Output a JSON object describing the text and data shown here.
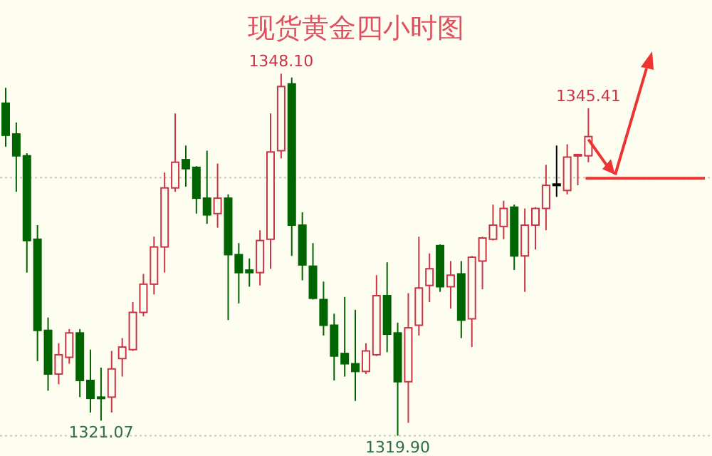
{
  "chart_data": {
    "type": "candlestick",
    "title": "现货黄金四小时图",
    "categories": [
      null,
      null,
      null,
      null,
      null,
      null,
      null,
      null,
      null,
      null,
      null,
      null,
      null,
      null,
      null,
      null,
      null,
      null,
      null,
      null,
      null,
      null,
      null,
      null,
      null,
      null,
      null,
      null,
      null,
      null,
      null,
      null,
      null,
      null,
      null,
      null,
      null,
      null,
      null,
      null,
      null,
      null,
      null,
      null,
      null,
      null,
      null,
      null,
      null,
      null,
      null,
      null,
      null,
      null,
      null,
      null
    ],
    "ohlc": [
      [
        1345.8,
        1347.0,
        1342.4,
        1343.3
      ],
      [
        1343.4,
        1344.3,
        1338.9,
        1341.7
      ],
      [
        1341.7,
        1341.9,
        1332.6,
        1335.1
      ],
      [
        1335.2,
        1336.3,
        1325.7,
        1328.1
      ],
      [
        1328.1,
        1329.1,
        1323.4,
        1324.7
      ],
      [
        1324.7,
        1327.1,
        1323.9,
        1326.2
      ],
      [
        1326.0,
        1328.2,
        1325.5,
        1327.9
      ],
      [
        1327.9,
        1328.2,
        1322.9,
        1324.2
      ],
      [
        1324.2,
        1326.6,
        1321.7,
        1322.8
      ],
      [
        1322.9,
        1325.2,
        1321.07,
        1322.8
      ],
      [
        1322.9,
        1326.5,
        1321.7,
        1325.1
      ],
      [
        1325.9,
        1327.5,
        1324.5,
        1326.8
      ],
      [
        1326.6,
        1330.3,
        1326.5,
        1329.5
      ],
      [
        1329.5,
        1332.5,
        1329.2,
        1331.7
      ],
      [
        1331.7,
        1335.4,
        1330.9,
        1334.6
      ],
      [
        1334.6,
        1340.4,
        1332.6,
        1339.2
      ],
      [
        1339.2,
        1345.0,
        1338.9,
        1341.2
      ],
      [
        1341.4,
        1342.5,
        1339.3,
        1340.7
      ],
      [
        1340.8,
        1340.9,
        1337.2,
        1338.4
      ],
      [
        1338.4,
        1342.1,
        1336.4,
        1337.1
      ],
      [
        1337.2,
        1341.1,
        1336.1,
        1338.4
      ],
      [
        1338.4,
        1338.7,
        1328.9,
        1334.0
      ],
      [
        1334.0,
        1334.9,
        1330.2,
        1332.6
      ],
      [
        1332.8,
        1333.7,
        1331.5,
        1332.6
      ],
      [
        1332.6,
        1335.9,
        1331.6,
        1335.1
      ],
      [
        1335.2,
        1345.0,
        1332.9,
        1342.0
      ],
      [
        1342.1,
        1348.1,
        1341.5,
        1347.1
      ],
      [
        1347.3,
        1347.8,
        1333.9,
        1336.3
      ],
      [
        1336.3,
        1337.3,
        1332.0,
        1333.2
      ],
      [
        1333.1,
        1334.9,
        1330.5,
        1330.6
      ],
      [
        1330.5,
        1331.9,
        1327.7,
        1328.5
      ],
      [
        1328.5,
        1329.4,
        1324.2,
        1326.1
      ],
      [
        1326.3,
        1330.7,
        1324.5,
        1325.5
      ],
      [
        1325.5,
        1329.7,
        1322.6,
        1324.9
      ],
      [
        1324.9,
        1327.1,
        1324.7,
        1326.5
      ],
      [
        1326.2,
        1332.4,
        1326.1,
        1330.8
      ],
      [
        1330.8,
        1333.4,
        1326.4,
        1327.8
      ],
      [
        1327.9,
        1328.7,
        1319.9,
        1324.1
      ],
      [
        1324.1,
        1331.0,
        1320.9,
        1328.3
      ],
      [
        1328.5,
        1335.4,
        1327.7,
        1331.4
      ],
      [
        1331.6,
        1334.1,
        1330.3,
        1332.9
      ],
      [
        1334.7,
        1334.8,
        1331.1,
        1331.5
      ],
      [
        1331.5,
        1333.5,
        1329.8,
        1332.4
      ],
      [
        1332.5,
        1333.5,
        1327.5,
        1328.9
      ],
      [
        1329.0,
        1333.9,
        1326.8,
        1333.8
      ],
      [
        1333.5,
        1335.4,
        1331.3,
        1335.3
      ],
      [
        1335.2,
        1337.9,
        1335.1,
        1336.3
      ],
      [
        1336.2,
        1338.2,
        1335.2,
        1337.6
      ],
      [
        1337.7,
        1337.9,
        1332.8,
        1333.9
      ],
      [
        1333.9,
        1337.6,
        1331.1,
        1336.3
      ],
      [
        1336.3,
        1337.7,
        1334.4,
        1337.6
      ],
      [
        1337.6,
        1341.0,
        1335.9,
        1339.4
      ],
      [
        1339.5,
        1342.5,
        1338.5,
        1339.5
      ],
      [
        1339.0,
        1342.6,
        1338.7,
        1341.6
      ],
      [
        1341.7,
        1341.8,
        1339.4,
        1341.8
      ],
      [
        1341.7,
        1345.41,
        1341.2,
        1343.2
      ]
    ],
    "colors": [
      "#006400",
      "#006400",
      "#006400",
      "#006400",
      "#006400",
      "#cc3344",
      "#cc3344",
      "#006400",
      "#006400",
      "#006400",
      "#cc3344",
      "#cc3344",
      "#cc3344",
      "#cc3344",
      "#cc3344",
      "#cc3344",
      "#cc3344",
      "#006400",
      "#006400",
      "#006400",
      "#cc3344",
      "#006400",
      "#006400",
      "#006400",
      "#cc3344",
      "#cc3344",
      "#cc3344",
      "#006400",
      "#006400",
      "#006400",
      "#006400",
      "#006400",
      "#006400",
      "#006400",
      "#cc3344",
      "#cc3344",
      "#006400",
      "#006400",
      "#cc3344",
      "#cc3344",
      "#cc3344",
      "#006400",
      "#cc3344",
      "#006400",
      "#cc3344",
      "#cc3344",
      "#cc3344",
      "#cc3344",
      "#006400",
      "#cc3344",
      "#cc3344",
      "#cc3344",
      "#000000",
      "#cc3344",
      "#cc3344",
      "#cc3344"
    ],
    "ref_lines": [
      {
        "axis": "y",
        "value": 1340.0,
        "color": "#c8c8b8",
        "line_style": "dotted"
      },
      {
        "axis": "y",
        "value": 1319.9,
        "color": "#c8c8b8",
        "line_style": "dotted"
      }
    ],
    "annotations": [
      {
        "text": "1348.10",
        "y": 1348.1
      },
      {
        "text": "1321.07",
        "y": 1321.07
      },
      {
        "text": "1319.90",
        "y": 1319.9
      },
      {
        "text": "1345.41",
        "y": 1345.41
      }
    ]
  }
}
